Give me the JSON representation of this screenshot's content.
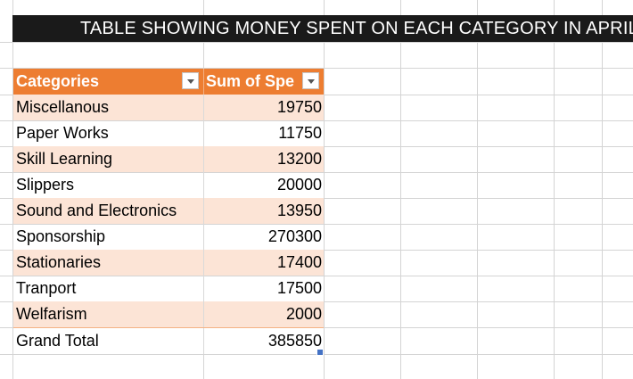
{
  "title": "TABLE SHOWING MONEY SPENT ON EACH CATEGORY IN APRIL",
  "pivot": {
    "headers": [
      "Categories",
      "Sum of Spe"
    ],
    "rows": [
      {
        "category": "Miscellanous",
        "value": "19750"
      },
      {
        "category": "Paper Works",
        "value": "11750"
      },
      {
        "category": "Skill Learning",
        "value": "13200"
      },
      {
        "category": "Slippers",
        "value": "20000"
      },
      {
        "category": "Sound and Electronics",
        "value": "13950"
      },
      {
        "category": "Sponsorship",
        "value": "270300"
      },
      {
        "category": "Stationaries",
        "value": "17400"
      },
      {
        "category": "Tranport",
        "value": "17500"
      },
      {
        "category": "Welfarism",
        "value": "2000"
      }
    ],
    "total": {
      "label": "Grand Total",
      "value": "385850"
    }
  },
  "colors": {
    "header_bg": "#ed7d31",
    "band_bg": "#fce4d6",
    "title_bg": "#1a1a1a",
    "grid": "#d4d4d4"
  },
  "icons": [
    "filter-dropdown-icon",
    "filter-dropdown-icon"
  ]
}
